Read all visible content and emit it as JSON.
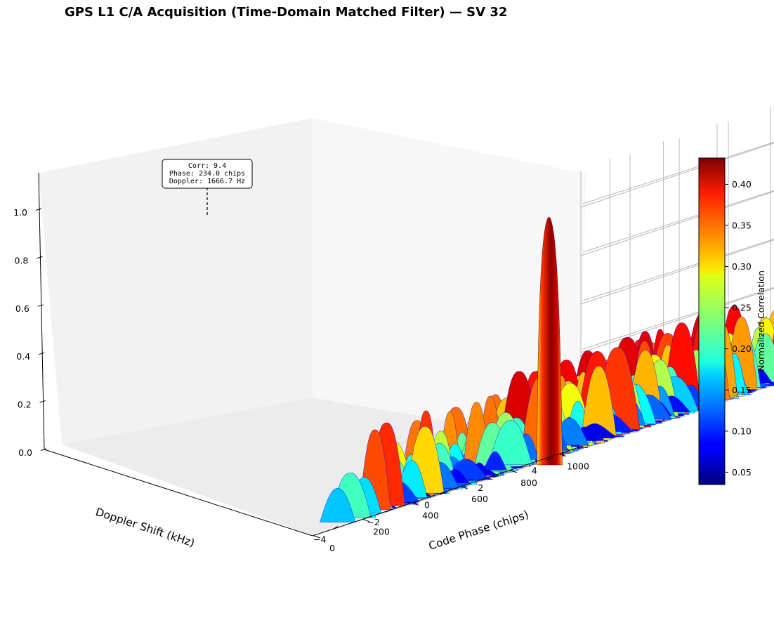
{
  "chart_data": {
    "type": "surface3d",
    "title": "GPS L1 C/A Acquisition (Time-Domain Matched Filter) — SV 32",
    "xlabel": "Code Phase (chips)",
    "ylabel": "Doppler Shift (kHz)",
    "zlabel": "",
    "x_ticks": [
      "0",
      "200",
      "400",
      "600",
      "800",
      "1000"
    ],
    "y_ticks": [
      "4",
      "2",
      "0",
      "−2",
      "−4"
    ],
    "z_ticks": [
      "0.0",
      "0.2",
      "0.4",
      "0.6",
      "0.8",
      "1.0"
    ],
    "xlim": [
      0,
      1100
    ],
    "ylim": [
      -5,
      5
    ],
    "zlim": [
      0,
      1.15
    ],
    "grid": true,
    "colormap": "jet",
    "noise_floor_approx": [
      0.05,
      0.4
    ],
    "peak": {
      "code_phase_chips": 234.0,
      "doppler_hz": 1666.7,
      "normalized": 1.0,
      "corr": 9.4
    },
    "annotation": {
      "line1": "Corr: 9.4",
      "line2": "Phase: 234.0 chips",
      "line3": "Doppler: 1666.7 Hz"
    },
    "colorbar": {
      "label": "Normalized Correlation",
      "range": [
        0.035,
        0.432
      ],
      "ticks": [
        "0.05",
        "0.10",
        "0.15",
        "0.20",
        "0.25",
        "0.30",
        "0.35",
        "0.40"
      ],
      "tick_values": [
        0.05,
        0.1,
        0.15,
        0.2,
        0.25,
        0.3,
        0.35,
        0.4
      ]
    }
  }
}
